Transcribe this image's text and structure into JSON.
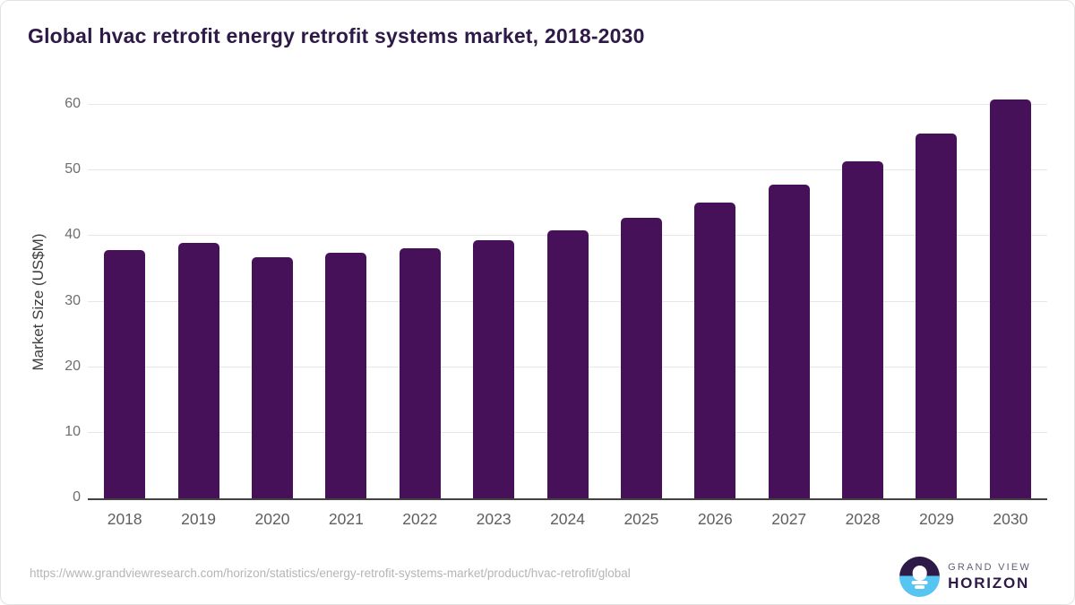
{
  "page": {
    "source_url": "https://www.grandviewresearch.com/horizon/statistics/energy-retrofit-systems-market/product/hvac-retrofit/global",
    "logo": {
      "line1": "GRAND VIEW",
      "line2": "HORIZON"
    }
  },
  "chart_data": {
    "type": "bar",
    "title": "Global hvac retrofit energy retrofit systems market, 2018-2030",
    "categories": [
      "2018",
      "2019",
      "2020",
      "2021",
      "2022",
      "2023",
      "2024",
      "2025",
      "2026",
      "2027",
      "2028",
      "2029",
      "2030"
    ],
    "values": [
      37.9,
      39.0,
      36.7,
      37.4,
      38.2,
      39.4,
      40.9,
      42.8,
      45.1,
      47.8,
      51.4,
      55.6,
      60.8
    ],
    "xlabel": "",
    "ylabel": "Market Size (US$M)",
    "ylim": [
      0,
      61.5
    ],
    "yticks": [
      0,
      10,
      20,
      30,
      40,
      50,
      60
    ],
    "grid": "horizontal-only",
    "legend": "none",
    "colors": {
      "bar": "#47115a",
      "title": "#2e1a47",
      "axis_title": "#3d3d3d",
      "tick_label": "#6e6e6e",
      "gridline": "#e7e7ea",
      "axis_line": "#424242",
      "source_text": "#b5b5b5",
      "logo_purple": "#2e1a47",
      "logo_blue": "#56c5f2"
    }
  }
}
